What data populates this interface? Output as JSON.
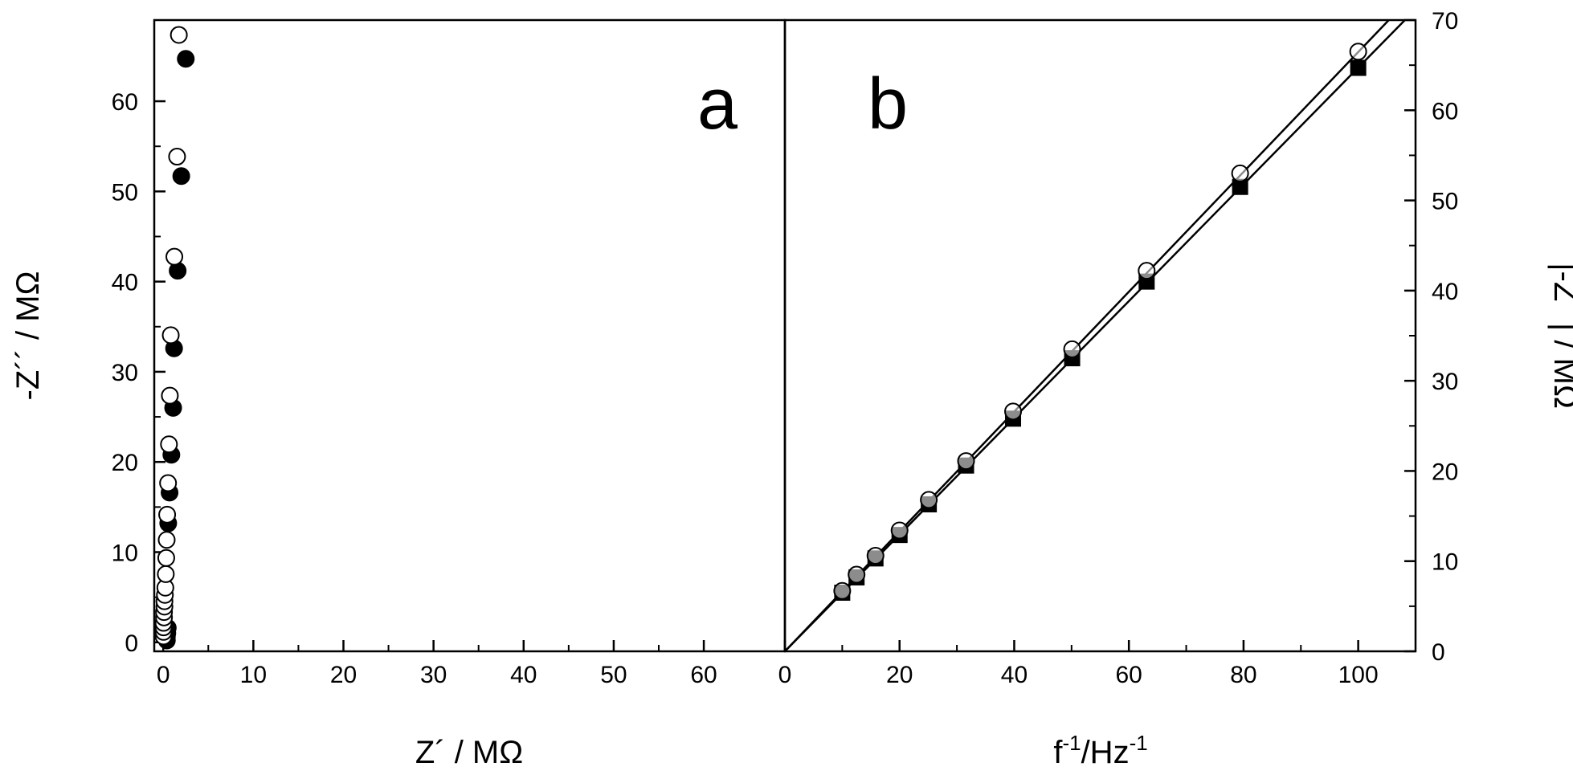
{
  "chart_data": [
    {
      "panel": "a",
      "type": "scatter",
      "panel_label": "a",
      "xlabel": "Z´ / MΩ",
      "ylabel": "-Z´´ / MΩ",
      "xlim": [
        -1,
        69
      ],
      "ylim": [
        -1,
        69
      ],
      "xticks": [
        0,
        10,
        20,
        30,
        40,
        50,
        60
      ],
      "yticks": [
        0,
        10,
        20,
        30,
        40,
        50,
        60
      ],
      "series": [
        {
          "marker": "open-circle",
          "points": [
            [
              0.3,
              0.3
            ],
            [
              0.3,
              0.8
            ],
            [
              0.3,
              1.3
            ],
            [
              0.3,
              1.8
            ],
            [
              0.35,
              2.4
            ],
            [
              0.35,
              3.0
            ],
            [
              0.4,
              3.6
            ],
            [
              0.4,
              4.2
            ],
            [
              0.45,
              4.9
            ],
            [
              0.5,
              5.7
            ],
            [
              0.55,
              7.2
            ],
            [
              0.6,
              9.0
            ],
            [
              0.65,
              11.0
            ],
            [
              0.7,
              13.8
            ],
            [
              0.8,
              17.3
            ],
            [
              0.9,
              21.6
            ],
            [
              1.0,
              27.0
            ],
            [
              1.1,
              33.7
            ],
            [
              1.5,
              42.4
            ],
            [
              1.8,
              53.5
            ],
            [
              2.0,
              67.0
            ]
          ]
        },
        {
          "marker": "filled-circle",
          "points": [
            [
              0.4,
              0.2
            ],
            [
              0.4,
              0.6
            ],
            [
              0.45,
              1.0
            ],
            [
              0.5,
              1.6
            ],
            [
              0.55,
              13.2
            ],
            [
              0.7,
              16.6
            ],
            [
              0.9,
              20.8
            ],
            [
              1.1,
              26.0
            ],
            [
              1.2,
              32.6
            ],
            [
              1.6,
              41.2
            ],
            [
              2.0,
              51.7
            ],
            [
              2.5,
              64.7
            ]
          ]
        }
      ]
    },
    {
      "panel": "b",
      "type": "scatter",
      "panel_label": "b",
      "xlabel": "f-1/Hz-1",
      "ylabel": "|-Z´´| / MΩ",
      "xlabel_parts": {
        "base": "f",
        "sup1": "-1",
        "mid": "/Hz",
        "sup2": "-1"
      },
      "xlim": [
        0,
        110
      ],
      "ylim": [
        0,
        70
      ],
      "xticks": [
        0,
        20,
        40,
        60,
        80,
        100
      ],
      "yticks": [
        0,
        10,
        20,
        30,
        40,
        50,
        60,
        70
      ],
      "series": [
        {
          "marker": "filled-square",
          "x": [
            10,
            12.5,
            15.8,
            20,
            25.1,
            31.6,
            39.8,
            50.1,
            63.1,
            79.4,
            100
          ],
          "values": [
            6.5,
            8.2,
            10.3,
            12.9,
            16.3,
            20.6,
            25.8,
            32.5,
            41.0,
            51.5,
            64.7
          ],
          "fit": {
            "x": [
              0,
              110
            ],
            "y": [
              0,
              71.2
            ]
          }
        },
        {
          "marker": "open-circle",
          "x": [
            10,
            12.5,
            15.8,
            20,
            25.1,
            31.6,
            39.8,
            50.1,
            63.1,
            79.4,
            100
          ],
          "values": [
            6.7,
            8.5,
            10.6,
            13.4,
            16.8,
            21.1,
            26.6,
            33.5,
            42.2,
            53.0,
            66.5
          ],
          "fit": {
            "x": [
              0,
              110
            ],
            "y": [
              0,
              73.1
            ]
          }
        }
      ]
    }
  ]
}
